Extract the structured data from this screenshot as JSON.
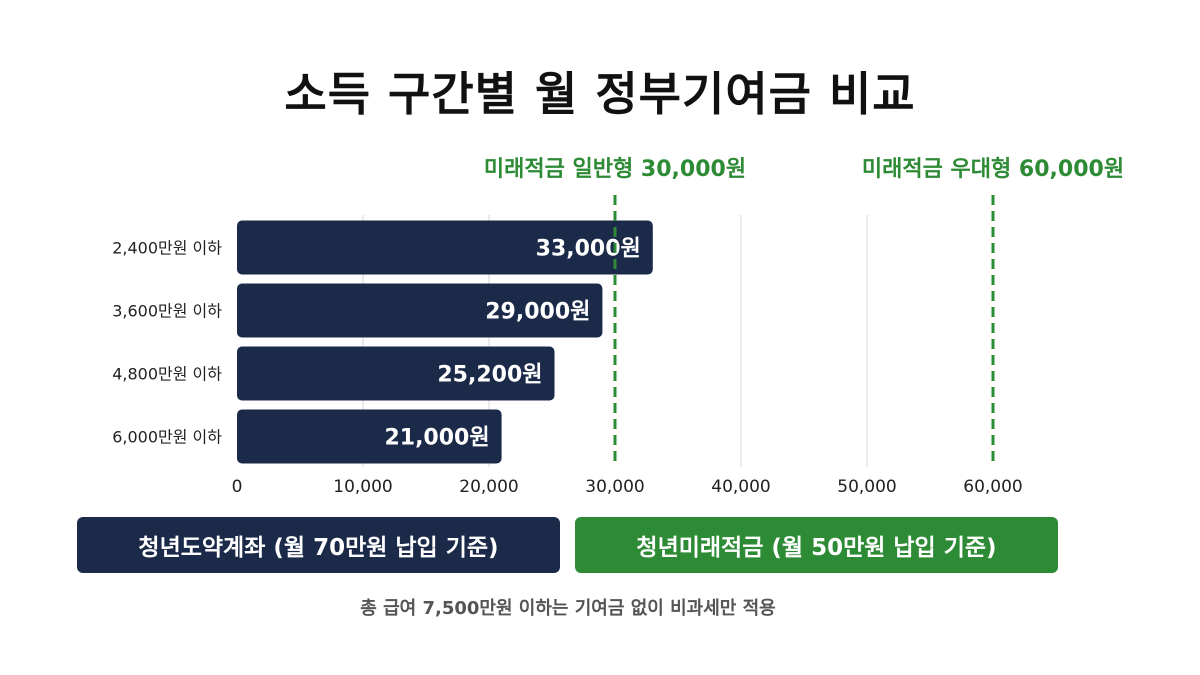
{
  "chart_data": {
    "type": "bar",
    "orientation": "horizontal",
    "title": "소득 구간별 월 정부기여금 비교",
    "categories": [
      "2,400만원 이하",
      "3,600만원 이하",
      "4,800만원 이하",
      "6,000만원 이하"
    ],
    "values": [
      33000,
      29000,
      25200,
      21000
    ],
    "data_labels": [
      "33,000원",
      "29,000원",
      "25,200원",
      "21,000원"
    ],
    "xlim": [
      0,
      60000
    ],
    "x_ticks": [
      0,
      10000,
      20000,
      30000,
      40000,
      50000,
      60000
    ],
    "x_tick_labels": [
      "0",
      "10,000",
      "20,000",
      "30,000",
      "40,000",
      "50,000",
      "60,000"
    ],
    "grid": true,
    "bar_color": "#1c2a4a",
    "reference_lines": [
      {
        "value": 30000,
        "label": "미래적금 일반형 30,000원",
        "color": "#2e8b35",
        "style": "dashed"
      },
      {
        "value": 60000,
        "label": "미래적금 우대형 60,000원",
        "color": "#2e8b35",
        "style": "dashed"
      }
    ],
    "legend": [
      {
        "label": "청년도약계좌 (월 70만원 납입 기준)",
        "color": "#1c2a4a"
      },
      {
        "label": "청년미래적금 (월 50만원 납입 기준)",
        "color": "#2e8b35"
      }
    ],
    "legend_placement": "bottom",
    "footnote": "총 급여 7,500만원 이하는 기여금 없이 비과세만 적용"
  }
}
